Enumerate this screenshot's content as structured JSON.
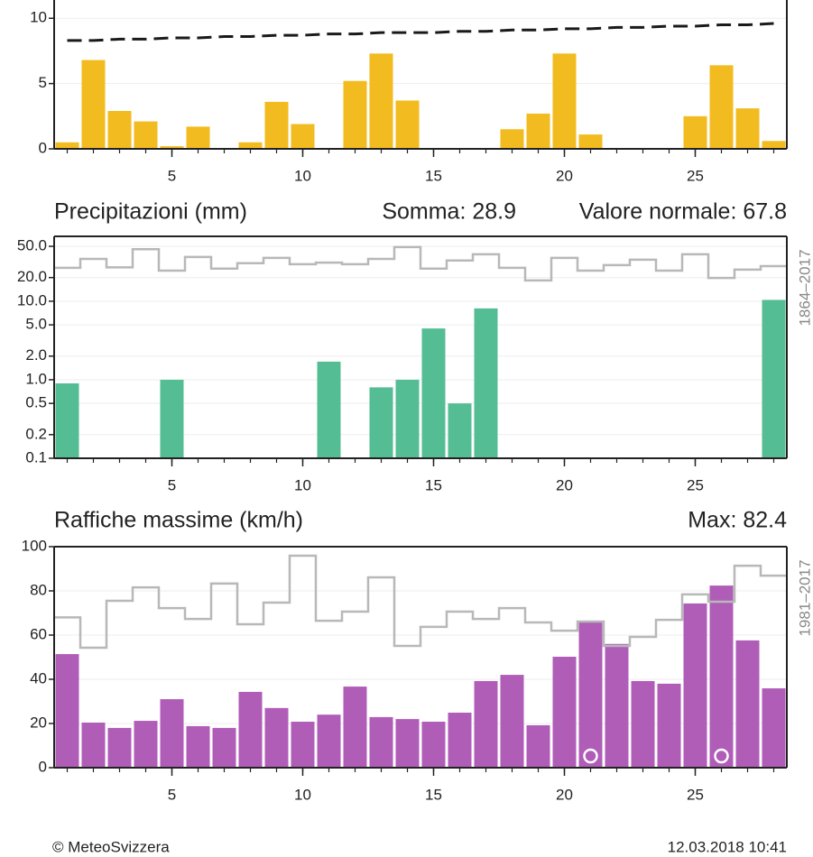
{
  "chart_data": [
    {
      "type": "bar",
      "x": [
        1,
        2,
        3,
        4,
        5,
        6,
        7,
        8,
        9,
        10,
        11,
        12,
        13,
        14,
        15,
        16,
        17,
        18,
        19,
        20,
        21,
        22,
        23,
        24,
        25,
        26,
        27,
        28
      ],
      "xlim": [
        0.5,
        28.5
      ],
      "xticks": [
        5,
        10,
        15,
        20,
        25
      ],
      "ylim": [
        0,
        11.4
      ],
      "yticks": [
        0,
        5,
        10
      ],
      "grid": true,
      "series": [
        {
          "kind": "bar",
          "color": "#f2bb1f",
          "values": [
            0.5,
            6.8,
            2.9,
            2.1,
            0.2,
            1.7,
            0,
            0.5,
            3.6,
            1.9,
            0,
            5.2,
            7.3,
            3.7,
            0,
            0,
            0,
            1.5,
            2.7,
            7.3,
            1.1,
            0,
            0,
            0,
            2.5,
            6.4,
            3.1,
            0.6
          ]
        },
        {
          "kind": "dashed",
          "color": "#1a1a1a",
          "values": [
            8.3,
            8.3,
            8.4,
            8.4,
            8.5,
            8.5,
            8.6,
            8.6,
            8.7,
            8.7,
            8.8,
            8.8,
            8.9,
            8.9,
            8.9,
            9.0,
            9.0,
            9.1,
            9.1,
            9.2,
            9.2,
            9.3,
            9.3,
            9.4,
            9.4,
            9.5,
            9.5,
            9.6
          ]
        }
      ]
    },
    {
      "type": "bar",
      "title": "Precipitazioni (mm)",
      "annotations": [
        "Somma: 28.9",
        "Valore normale: 67.8"
      ],
      "side_label": "1864–2017",
      "x": [
        1,
        2,
        3,
        4,
        5,
        6,
        7,
        8,
        9,
        10,
        11,
        12,
        13,
        14,
        15,
        16,
        17,
        18,
        19,
        20,
        21,
        22,
        23,
        24,
        25,
        26,
        27,
        28
      ],
      "xlim": [
        0.5,
        28.5
      ],
      "xticks": [
        5,
        10,
        15,
        20,
        25
      ],
      "log_scale": true,
      "ylim": [
        0.1,
        67
      ],
      "yticks": [
        0.1,
        0.2,
        0.5,
        {
          "value": 1,
          "label": "1.0"
        },
        {
          "value": 2,
          "label": "2.0"
        },
        {
          "value": 5,
          "label": "5.0"
        },
        {
          "value": 10,
          "label": "10.0"
        },
        {
          "value": 20,
          "label": "20.0"
        },
        {
          "value": 50,
          "label": "50.0"
        }
      ],
      "grid": true,
      "series": [
        {
          "kind": "bar",
          "color": "#55bd94",
          "values": [
            0.9,
            0,
            0,
            0,
            1.0,
            0,
            0,
            0,
            0,
            0,
            1.7,
            0,
            0.8,
            1.0,
            4.5,
            0.5,
            8.1,
            0,
            0,
            0,
            0,
            0,
            0,
            0,
            0,
            0,
            0,
            10.4
          ]
        },
        {
          "kind": "step",
          "color": "#b8b8b8",
          "values": [
            26.6,
            34.6,
            27,
            46,
            24.5,
            36.6,
            26,
            30.5,
            35.6,
            29.6,
            31,
            29.6,
            34.6,
            49,
            26,
            33,
            39.6,
            26.6,
            18.4,
            35.6,
            24.5,
            28.8,
            33.8,
            24.5,
            39.6,
            19.8,
            25.3,
            28
          ]
        }
      ]
    },
    {
      "type": "bar",
      "title": "Raffiche massime (km/h)",
      "annotations": [
        "Max: 82.4"
      ],
      "side_label": "1981–2017",
      "x": [
        1,
        2,
        3,
        4,
        5,
        6,
        7,
        8,
        9,
        10,
        11,
        12,
        13,
        14,
        15,
        16,
        17,
        18,
        19,
        20,
        21,
        22,
        23,
        24,
        25,
        26,
        27,
        28
      ],
      "xlim": [
        0.5,
        28.5
      ],
      "xticks": [
        5,
        10,
        15,
        20,
        25
      ],
      "ylim": [
        0,
        100
      ],
      "yticks": [
        0,
        20,
        40,
        60,
        80,
        100
      ],
      "grid": true,
      "flagged_days": [
        21,
        26
      ],
      "series": [
        {
          "kind": "bar",
          "color": "#b05db8",
          "values": [
            51.4,
            20.4,
            18,
            21.2,
            31,
            18.8,
            18,
            34.3,
            27,
            20.8,
            24,
            36.7,
            22.9,
            22,
            20.8,
            24.9,
            39.2,
            42,
            19.2,
            50.2,
            66.1,
            56,
            39.2,
            38,
            74.3,
            82.4,
            57.6,
            35.9
          ]
        },
        {
          "kind": "step",
          "color": "#b8b8b8",
          "values": [
            68,
            54.3,
            75.5,
            81.6,
            72.2,
            67.3,
            83.3,
            64.9,
            74.7,
            95.9,
            66.5,
            70.6,
            86.1,
            55.1,
            63.7,
            70.6,
            67.3,
            72.2,
            65.7,
            62,
            66.1,
            55.1,
            59.2,
            66.9,
            78.4,
            75.1,
            91.4,
            86.9
          ]
        }
      ]
    }
  ],
  "footer": {
    "source": "© MeteoSvizzera",
    "timestamp": "12.03.2018 10:41"
  }
}
